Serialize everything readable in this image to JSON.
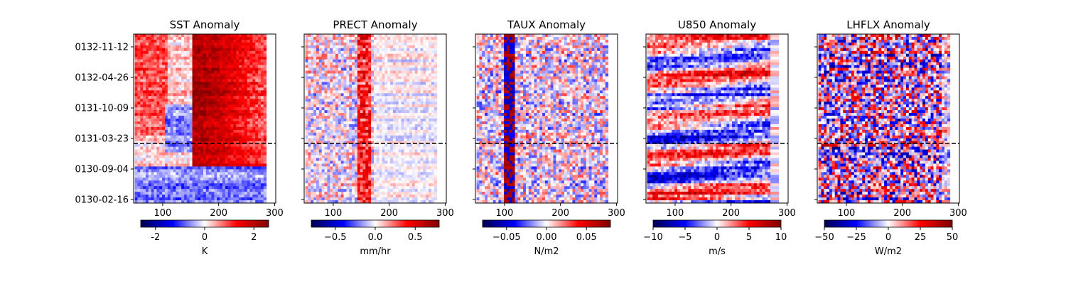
{
  "chart_data": [
    {
      "type": "heatmap",
      "title": "SST Anomaly",
      "x_ticks": [
        100,
        200,
        300
      ],
      "xlim": [
        48,
        302
      ],
      "y_ticks": [
        "0132-11-12",
        "0132-04-26",
        "0131-10-09",
        "0131-03-23",
        "0130-09-04",
        "0130-02-16"
      ],
      "show_y_tick_labels": true,
      "reference_line_date": "0131-03-23",
      "colorbar": {
        "label": "K",
        "ticks": [
          -2,
          0,
          2
        ],
        "range": [
          -2.6,
          2.6
        ],
        "colormap": "seismic"
      }
    },
    {
      "type": "heatmap",
      "title": "PRECT Anomaly",
      "x_ticks": [
        100,
        200,
        300
      ],
      "xlim": [
        48,
        302
      ],
      "y_ticks": [
        "0132-11-12",
        "0132-04-26",
        "0131-10-09",
        "0131-03-23",
        "0130-09-04",
        "0130-02-16"
      ],
      "show_y_tick_labels": false,
      "reference_line_date": "0131-03-23",
      "colorbar": {
        "label": "mm/hr",
        "ticks": [
          "−0.5",
          "0.0",
          "0.5"
        ],
        "tick_values": [
          -0.5,
          0.0,
          0.5
        ],
        "range": [
          -0.8,
          0.8
        ],
        "colormap": "seismic"
      }
    },
    {
      "type": "heatmap",
      "title": "TAUX Anomaly",
      "x_ticks": [
        100,
        200,
        300
      ],
      "xlim": [
        48,
        302
      ],
      "y_ticks": [
        "0132-11-12",
        "0132-04-26",
        "0131-10-09",
        "0131-03-23",
        "0130-09-04",
        "0130-02-16"
      ],
      "show_y_tick_labels": false,
      "reference_line_date": "0131-03-23",
      "colorbar": {
        "label": "N/m2",
        "ticks": [
          "−0.05",
          "0.00",
          "0.05"
        ],
        "tick_values": [
          -0.05,
          0.0,
          0.05
        ],
        "range": [
          -0.08,
          0.08
        ],
        "colormap": "seismic"
      }
    },
    {
      "type": "heatmap",
      "title": "U850 Anomaly",
      "x_ticks": [
        100,
        200,
        300
      ],
      "xlim": [
        48,
        302
      ],
      "y_ticks": [
        "0132-11-12",
        "0132-04-26",
        "0131-10-09",
        "0131-03-23",
        "0130-09-04",
        "0130-02-16"
      ],
      "show_y_tick_labels": false,
      "reference_line_date": "0131-03-23",
      "colorbar": {
        "label": "m/s",
        "ticks": [
          "−10",
          "−5",
          "0",
          "5",
          "10"
        ],
        "tick_values": [
          -10,
          -5,
          0,
          5,
          10
        ],
        "range": [
          -10,
          10
        ],
        "colormap": "seismic"
      }
    },
    {
      "type": "heatmap",
      "title": "LHFLX Anomaly",
      "x_ticks": [
        100,
        200,
        300
      ],
      "xlim": [
        48,
        302
      ],
      "y_ticks": [
        "0132-11-12",
        "0132-04-26",
        "0131-10-09",
        "0131-03-23",
        "0130-09-04",
        "0130-02-16"
      ],
      "show_y_tick_labels": false,
      "reference_line_date": "0131-03-23",
      "colorbar": {
        "label": "W/m2",
        "ticks": [
          "−50",
          "−25",
          "0",
          "25",
          "50"
        ],
        "tick_values": [
          -50,
          -25,
          0,
          25,
          50
        ],
        "range": [
          -50,
          50
        ],
        "colormap": "seismic"
      }
    }
  ]
}
